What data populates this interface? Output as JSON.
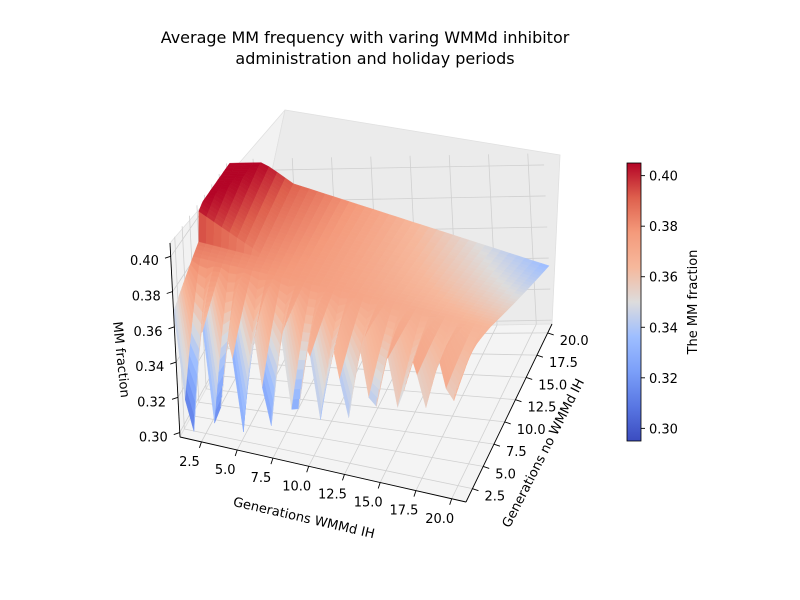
{
  "chart_data": {
    "type": "surface3d",
    "title_lines": [
      "Average MM frequency with varing WMMd inhibitor",
      "administration and holiday periods"
    ],
    "xlabel": "Generations WMMd IH",
    "ylabel": "Generations no WMMd IH",
    "zlabel": "MM fraction",
    "x_ticks": [
      "2.5",
      "5.0",
      "7.5",
      "10.0",
      "12.5",
      "15.0",
      "17.5",
      "20.0"
    ],
    "y_ticks": [
      "2.5",
      "5.0",
      "7.5",
      "10.0",
      "12.5",
      "15.0",
      "17.5",
      "20.0"
    ],
    "z_ticks": [
      "0.30",
      "0.32",
      "0.34",
      "0.36",
      "0.38",
      "0.40"
    ],
    "xlim": [
      1,
      21
    ],
    "ylim": [
      1,
      21
    ],
    "zlim": [
      0.2975,
      0.4075
    ],
    "colormap": "coolwarm",
    "colorbar": {
      "label": "The MM fraction",
      "ticks": [
        "0.30",
        "0.32",
        "0.34",
        "0.36",
        "0.38",
        "0.40"
      ],
      "range": [
        0.295,
        0.405
      ]
    },
    "grid": true,
    "surface": {
      "x": [
        1,
        21
      ],
      "y": [
        1,
        21
      ],
      "corner_values": {
        "x1_y1": 0.372,
        "x1_y21": 0.405,
        "x21_y1": 0.38,
        "x21_y21": 0.305
      },
      "min": 0.3,
      "max": 0.405,
      "note_region": "oscillating sawtooth ridge for small y (no-inhibitor generations)"
    }
  }
}
